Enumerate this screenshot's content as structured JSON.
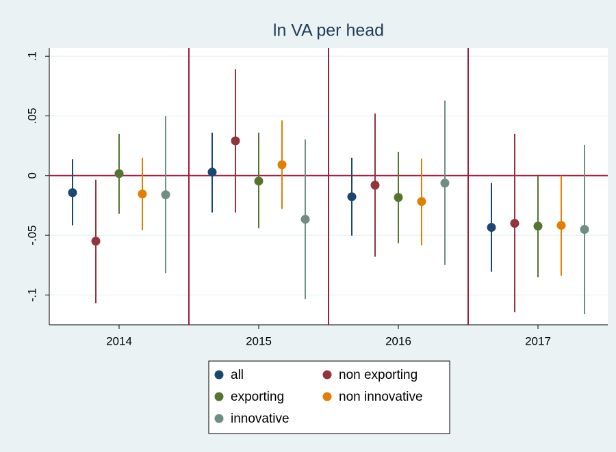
{
  "chart_data": {
    "type": "errorbar",
    "title": "ln VA per head",
    "categories": [
      "2014",
      "2015",
      "2016",
      "2017"
    ],
    "ylim": [
      -0.125,
      0.107
    ],
    "yticks": [
      {
        "value": -0.1,
        "label": "-.1"
      },
      {
        "value": -0.05,
        "label": "-.05"
      },
      0,
      {
        "value": 0.05,
        "label": ".05"
      },
      {
        "value": 0.1,
        "label": ".1"
      }
    ],
    "grid": true,
    "series": [
      {
        "name": "all",
        "color": "#1a476f",
        "values": [
          -0.0143,
          0.0029,
          -0.0177,
          -0.0434
        ],
        "lower": [
          -0.0417,
          -0.0309,
          -0.0503,
          -0.0806
        ],
        "upper": [
          0.0137,
          0.036,
          0.0149,
          -0.0063
        ]
      },
      {
        "name": "non exporting",
        "color": "#90353b",
        "values": [
          -0.0549,
          0.0291,
          -0.008,
          -0.04
        ],
        "lower": [
          -0.1069,
          -0.0309,
          -0.068,
          -0.1143
        ],
        "upper": [
          -0.0034,
          0.0891,
          0.052,
          0.0349
        ]
      },
      {
        "name": "exporting",
        "color": "#55752f",
        "values": [
          0.0017,
          -0.0046,
          -0.0183,
          -0.0423
        ],
        "lower": [
          -0.032,
          -0.044,
          -0.0566,
          -0.0851
        ],
        "upper": [
          0.0349,
          0.036,
          0.02,
          0
        ]
      },
      {
        "name": "non innovative",
        "color": "#e37e00",
        "values": [
          -0.0154,
          0.0091,
          -0.0217,
          -0.0417
        ],
        "lower": [
          -0.0457,
          -0.028,
          -0.0583,
          -0.084
        ],
        "upper": [
          0.0149,
          0.0463,
          0.0143,
          0
        ]
      },
      {
        "name": "innovative",
        "color": "#6e8e84",
        "values": [
          -0.016,
          -0.0366,
          -0.0063,
          -0.0451
        ],
        "lower": [
          -0.0817,
          -0.1034,
          -0.0749,
          -0.116
        ],
        "upper": [
          0.0497,
          0.0303,
          0.0629,
          0.0257
        ]
      }
    ]
  }
}
